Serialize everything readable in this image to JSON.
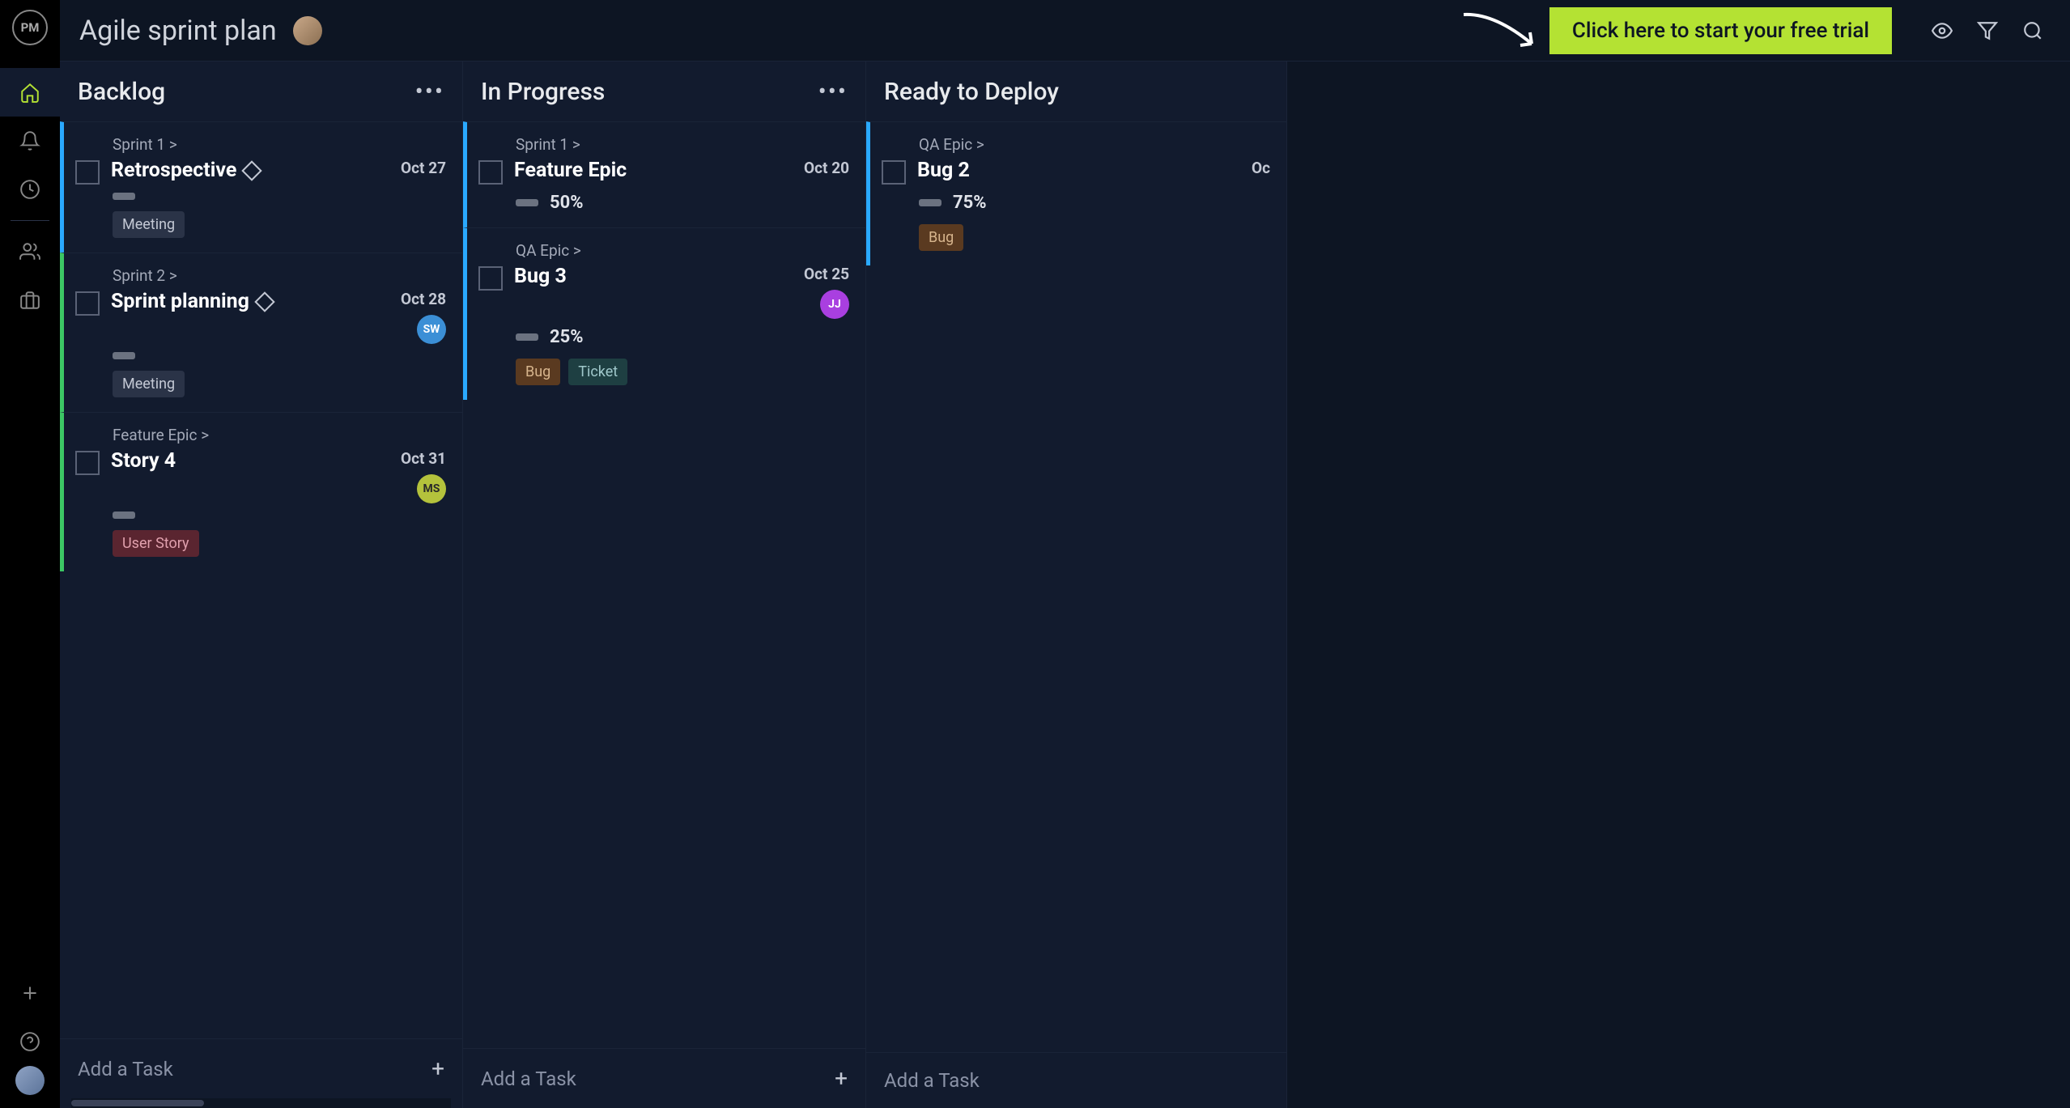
{
  "header": {
    "logo_text": "PM",
    "title": "Agile sprint plan",
    "cta_label": "Click here to start your free trial"
  },
  "colors": {
    "accent": "#b4e233",
    "bg": "#0d1523",
    "column_bg": "#121b2e",
    "border": "#1a2438",
    "stripe_blue": "#2aa9ff",
    "stripe_green": "#3cc764"
  },
  "tag_styles": {
    "meeting": {
      "bg": "#2a3347",
      "fg": "#c3c8d4"
    },
    "user_story": {
      "bg": "#5a2530",
      "fg": "#e0a0ad"
    },
    "bug": {
      "bg": "#5a3a20",
      "fg": "#d6b48c"
    },
    "ticket": {
      "bg": "#1e3f42",
      "fg": "#a0c8cb"
    }
  },
  "assignee_styles": {
    "SW": {
      "bg": "#3b8fd6",
      "fg": "#ffffff"
    },
    "MS": {
      "bg": "#b4c23c",
      "fg": "#2a2a2a"
    },
    "JJ": {
      "bg": "#a93fe0",
      "fg": "#ffffff"
    }
  },
  "columns": {
    "backlog": {
      "title": "Backlog",
      "add_label": "Add a Task",
      "cards": [
        {
          "epic": "Sprint 1 >",
          "title": "Retrospective",
          "milestone": true,
          "date": "Oct 27",
          "percent": "",
          "stripe": "stripe_blue",
          "tags": [
            {
              "label": "Meeting",
              "style": "meeting"
            }
          ]
        },
        {
          "epic": "Sprint 2 >",
          "title": "Sprint planning",
          "milestone": true,
          "date": "Oct 28",
          "percent": "",
          "stripe": "stripe_green",
          "assignee": "SW",
          "tags": [
            {
              "label": "Meeting",
              "style": "meeting"
            }
          ]
        },
        {
          "epic": "Feature Epic >",
          "title": "Story 4",
          "milestone": false,
          "date": "Oct 31",
          "percent": "",
          "stripe": "stripe_green",
          "assignee": "MS",
          "tags": [
            {
              "label": "User Story",
              "style": "user_story"
            }
          ]
        }
      ]
    },
    "in_progress": {
      "title": "In Progress",
      "add_label": "Add a Task",
      "cards": [
        {
          "epic": "Sprint 1 >",
          "title": "Feature Epic",
          "milestone": false,
          "date": "Oct 20",
          "percent": "50%",
          "stripe": "stripe_blue",
          "tags": []
        },
        {
          "epic": "QA Epic >",
          "title": "Bug 3",
          "milestone": false,
          "date": "Oct 25",
          "percent": "25%",
          "stripe": "stripe_blue",
          "assignee": "JJ",
          "tags": [
            {
              "label": "Bug",
              "style": "bug"
            },
            {
              "label": "Ticket",
              "style": "ticket"
            }
          ]
        }
      ]
    },
    "ready": {
      "title": "Ready to Deploy",
      "add_label": "Add a Task",
      "cards": [
        {
          "epic": "QA Epic >",
          "title": "Bug 2",
          "milestone": false,
          "date": "Oc",
          "percent": "75%",
          "stripe": "stripe_blue",
          "tags": [
            {
              "label": "Bug",
              "style": "bug"
            }
          ]
        }
      ]
    }
  }
}
